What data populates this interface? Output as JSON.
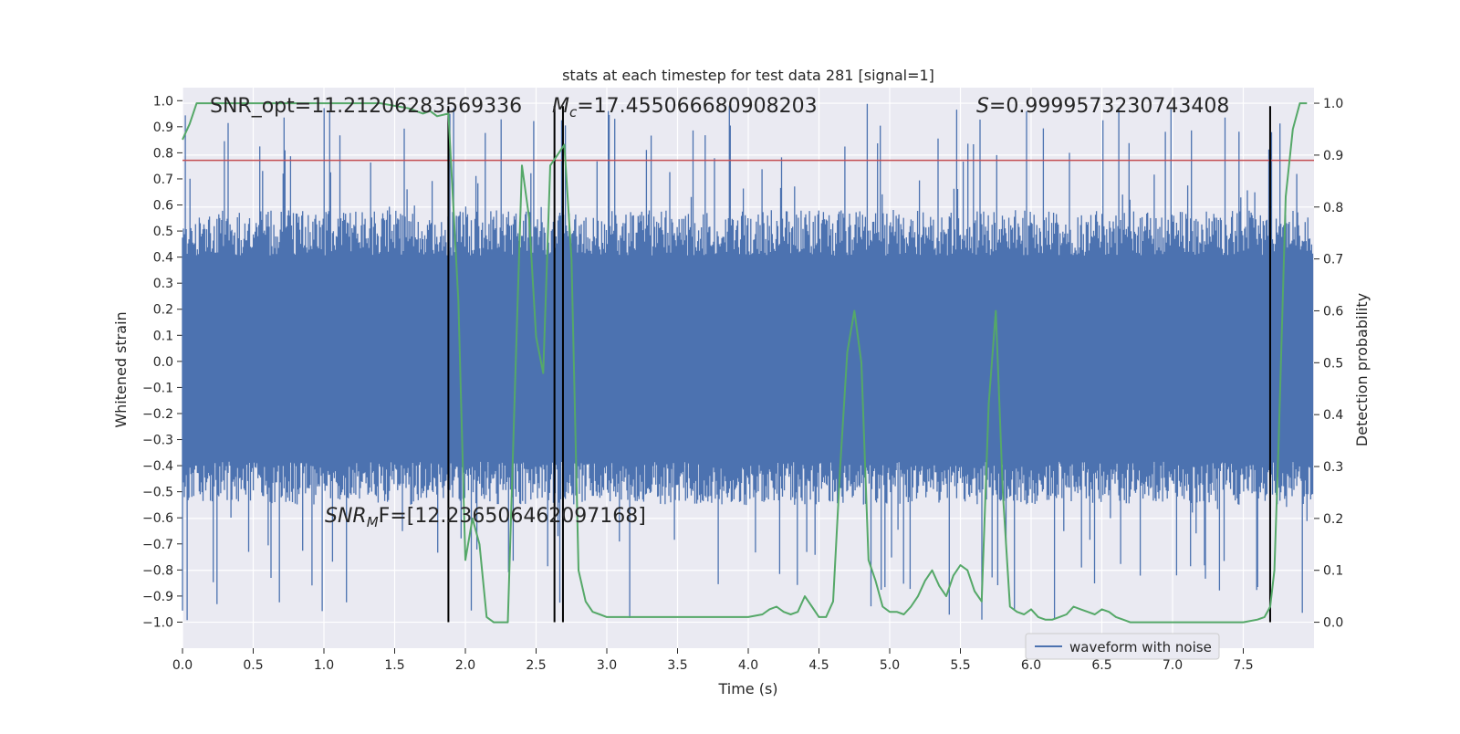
{
  "chart_data": {
    "type": "line",
    "title": "stats at each timestep for test data 281 [signal=1]",
    "xlabel": "Time (s)",
    "ylabel": "Whitened strain",
    "y2label": "Detection probability",
    "xlim": [
      0.0,
      8.0
    ],
    "ylim": [
      -1.1,
      1.05
    ],
    "y2lim": [
      -0.05,
      1.03
    ],
    "x_ticks": [
      0.0,
      0.5,
      1.0,
      1.5,
      2.0,
      2.5,
      3.0,
      3.5,
      4.0,
      4.5,
      5.0,
      5.5,
      6.0,
      6.5,
      7.0,
      7.5
    ],
    "y_ticks": [
      1.0,
      0.9,
      0.8,
      0.7,
      0.6,
      0.5,
      0.4,
      0.3,
      0.2,
      0.1,
      0.0,
      -0.1,
      -0.2,
      -0.3,
      -0.4,
      -0.5,
      -0.6,
      -0.7,
      -0.8,
      -0.9,
      -1.0
    ],
    "y2_ticks": [
      1.0,
      0.9,
      0.8,
      0.7,
      0.6,
      0.5,
      0.4,
      0.3,
      0.2,
      0.1,
      0.0
    ],
    "grid": true,
    "legend": {
      "position": "lower-right",
      "entries": [
        "waveform with noise"
      ]
    },
    "annotations": {
      "snr_opt": "SNR_opt=11.21206283569336",
      "mc_symbol": "M",
      "mc_sub": "c",
      "mc_value": "=17.455066680908203",
      "s_symbol": "S",
      "s_value": "=0.9999573230743408",
      "snr_mf_symbol": "SNR",
      "snr_mf_sub": "M",
      "snr_mf_value": "F=[12.236506462097168]"
    },
    "threshold": {
      "axis": "right",
      "value": 0.89,
      "color": "#c44e52"
    },
    "vlines": [
      1.88,
      2.63,
      2.69,
      7.69
    ],
    "series": [
      {
        "name": "waveform with noise",
        "axis": "left",
        "color": "#4c72b0",
        "kind": "noise-band",
        "envelope": [
          0.58,
          -0.55
        ],
        "peak_max": 0.99,
        "trough_min": -1.0,
        "n_samples": 1214
      },
      {
        "axis": "right",
        "color": "#55a868",
        "x": [
          0.0,
          0.05,
          0.1,
          0.2,
          0.3,
          0.5,
          0.8,
          1.0,
          1.2,
          1.4,
          1.6,
          1.7,
          1.75,
          1.8,
          1.88,
          1.95,
          2.0,
          2.05,
          2.1,
          2.15,
          2.2,
          2.25,
          2.3,
          2.35,
          2.4,
          2.45,
          2.5,
          2.55,
          2.6,
          2.65,
          2.7,
          2.75,
          2.8,
          2.85,
          2.9,
          2.95,
          3.0,
          3.5,
          4.0,
          4.1,
          4.15,
          4.2,
          4.25,
          4.3,
          4.35,
          4.4,
          4.45,
          4.5,
          4.55,
          4.6,
          4.65,
          4.7,
          4.75,
          4.8,
          4.85,
          4.9,
          4.95,
          5.0,
          5.05,
          5.1,
          5.15,
          5.2,
          5.25,
          5.3,
          5.35,
          5.4,
          5.45,
          5.5,
          5.55,
          5.6,
          5.65,
          5.7,
          5.75,
          5.8,
          5.85,
          5.9,
          5.95,
          6.0,
          6.05,
          6.1,
          6.15,
          6.2,
          6.25,
          6.3,
          6.35,
          6.4,
          6.45,
          6.5,
          6.55,
          6.6,
          6.65,
          6.7,
          6.75,
          6.8,
          6.85,
          6.9,
          7.0,
          7.2,
          7.5,
          7.6,
          7.65,
          7.69,
          7.72,
          7.75,
          7.8,
          7.85,
          7.9,
          7.95
        ],
        "values": [
          0.93,
          0.96,
          1.0,
          1.0,
          1.0,
          1.0,
          1.0,
          1.0,
          1.0,
          1.0,
          0.99,
          0.98,
          0.985,
          0.975,
          0.98,
          0.62,
          0.12,
          0.2,
          0.15,
          0.01,
          0.0,
          0.0,
          0.0,
          0.45,
          0.88,
          0.78,
          0.55,
          0.48,
          0.88,
          0.9,
          0.92,
          0.7,
          0.1,
          0.04,
          0.02,
          0.015,
          0.01,
          0.01,
          0.01,
          0.015,
          0.025,
          0.03,
          0.02,
          0.015,
          0.02,
          0.05,
          0.03,
          0.01,
          0.01,
          0.04,
          0.3,
          0.52,
          0.6,
          0.5,
          0.12,
          0.08,
          0.03,
          0.02,
          0.02,
          0.015,
          0.03,
          0.05,
          0.08,
          0.1,
          0.07,
          0.05,
          0.09,
          0.11,
          0.1,
          0.06,
          0.04,
          0.42,
          0.6,
          0.25,
          0.03,
          0.02,
          0.015,
          0.025,
          0.01,
          0.005,
          0.005,
          0.01,
          0.015,
          0.03,
          0.025,
          0.02,
          0.015,
          0.025,
          0.02,
          0.01,
          0.005,
          0.0,
          0.0,
          0.0,
          0.0,
          0.0,
          0.0,
          0.0,
          0.0,
          0.005,
          0.01,
          0.03,
          0.1,
          0.35,
          0.82,
          0.95,
          1.0,
          1.0
        ]
      }
    ]
  }
}
